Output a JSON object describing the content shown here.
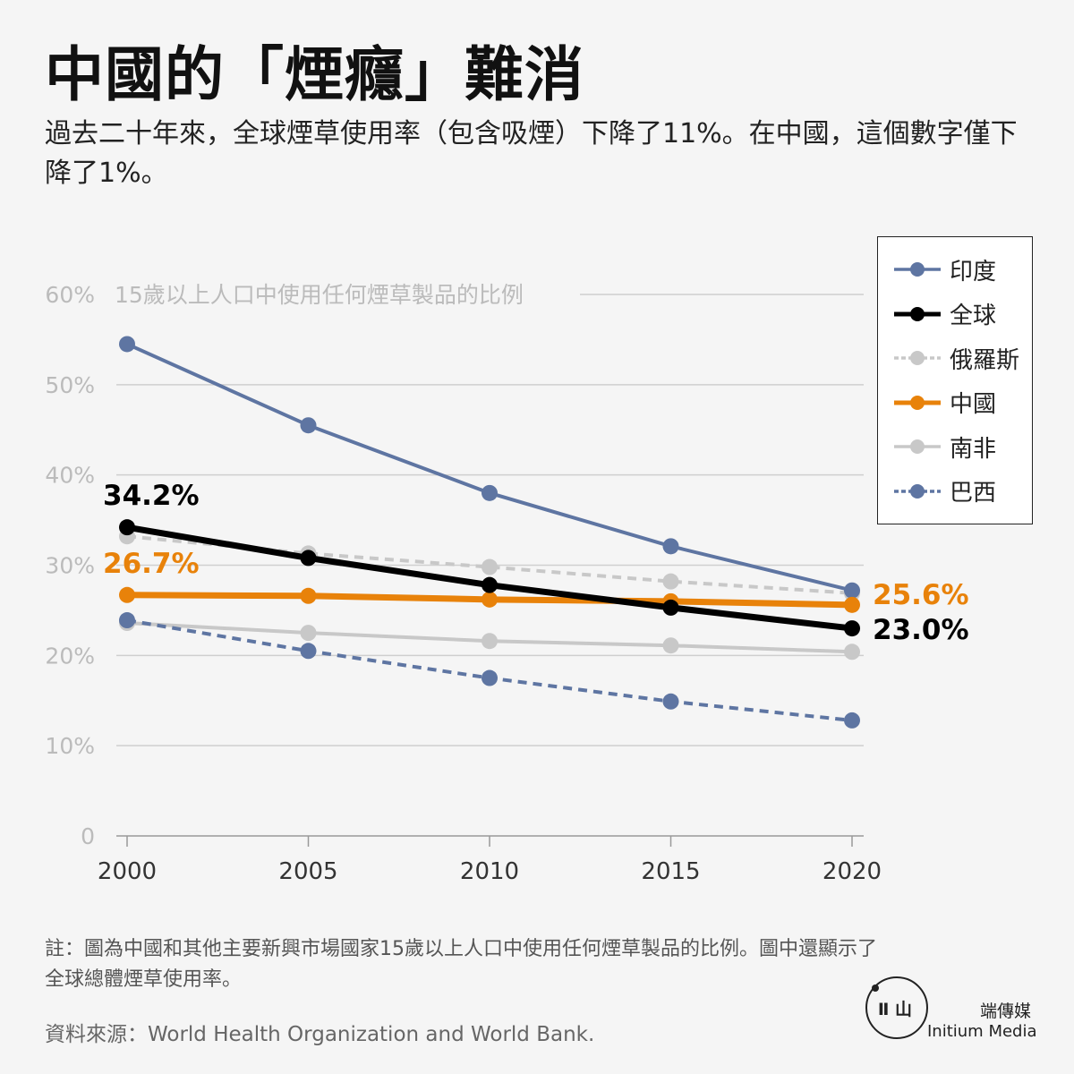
{
  "header": {
    "title": "中國的「煙癮」難消",
    "subtitle": "過去二十年來，全球煙草使用率（包含吸煙）下降了11%。在中國，這個數字僅下降了1%。"
  },
  "chart_data": {
    "type": "line",
    "title": "15歲以上人口中使用任何煙草製品的比例",
    "x": [
      2000,
      2005,
      2010,
      2015,
      2020
    ],
    "ylim": [
      0,
      60
    ],
    "yticks": [
      0,
      10,
      20,
      30,
      40,
      50,
      60
    ],
    "ytick_labels": [
      "0",
      "10%",
      "20%",
      "30%",
      "40%",
      "50%",
      "60%"
    ],
    "xtick_labels": [
      "2000",
      "2005",
      "2010",
      "2015",
      "2020"
    ],
    "grid": true,
    "legend_position": "top-right",
    "series": [
      {
        "name": "南非",
        "color": "#c8c8c8",
        "dashed": false,
        "width": 4,
        "values": [
          23.6,
          22.5,
          21.6,
          21.1,
          20.4
        ]
      },
      {
        "name": "俄羅斯",
        "color": "#c8c8c8",
        "dashed": true,
        "width": 4,
        "values": [
          33.2,
          31.3,
          29.8,
          28.2,
          26.9
        ]
      },
      {
        "name": "巴西",
        "color": "#5e75a2",
        "dashed": true,
        "width": 4,
        "values": [
          23.9,
          20.5,
          17.5,
          14.9,
          12.8
        ]
      },
      {
        "name": "印度",
        "color": "#5e75a2",
        "dashed": false,
        "width": 4,
        "values": [
          54.5,
          45.5,
          38.0,
          32.1,
          27.2
        ]
      },
      {
        "name": "中國",
        "color": "#e8820a",
        "dashed": false,
        "width": 7,
        "values": [
          26.7,
          26.6,
          26.2,
          26.0,
          25.6
        ]
      },
      {
        "name": "全球",
        "color": "#000000",
        "dashed": false,
        "width": 7,
        "values": [
          34.2,
          30.8,
          27.8,
          25.3,
          23.0
        ]
      }
    ],
    "legend_order": [
      "印度",
      "全球",
      "俄羅斯",
      "中國",
      "南非",
      "巴西"
    ],
    "annotations": [
      {
        "text": "34.2%",
        "series": "全球",
        "point": "start",
        "color": "#000000"
      },
      {
        "text": "26.7%",
        "series": "中國",
        "point": "start",
        "color": "#e8820a"
      },
      {
        "text": "25.6%",
        "series": "中國",
        "point": "end",
        "color": "#e8820a"
      },
      {
        "text": "23.0%",
        "series": "全球",
        "point": "end",
        "color": "#000000"
      }
    ]
  },
  "footer": {
    "note": "註：圖為中國和其他主要新興市場國家15歲以上人口中使用任何煙草製品的比例。圖中還顯示了全球總體煙草使用率。",
    "source": "資料來源：World Health Organization and World Bank.",
    "brand_cn": "端傳媒",
    "brand_en": "Initium Media",
    "logo_glyph": "Ⅱ 山"
  }
}
